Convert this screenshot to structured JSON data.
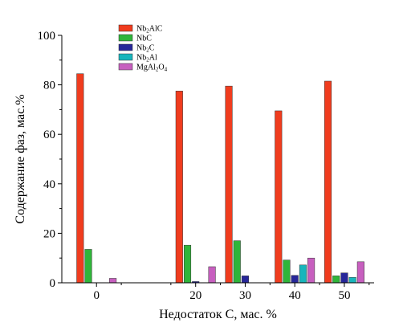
{
  "chart_data": {
    "type": "bar",
    "xlabel": "Недостаток С, мас. %",
    "ylabel": "Содержание фаз, мас.%",
    "ylim": [
      0,
      100
    ],
    "yticks": [
      "0",
      "20",
      "40",
      "60",
      "80",
      "100"
    ],
    "xlim": [
      -7,
      56
    ],
    "categories": [
      "0",
      "20",
      "30",
      "40",
      "50"
    ],
    "x": [
      0,
      20,
      30,
      40,
      50
    ],
    "series": [
      {
        "name": "Nb2AlC",
        "label_main": "Nb",
        "label_sub": "2",
        "label_tail": "AlC",
        "color": "#f03c1e",
        "values": [
          84.5,
          77.5,
          79.5,
          69.5,
          81.5
        ]
      },
      {
        "name": "NbC",
        "label_main": "NbC",
        "label_sub": "",
        "label_tail": "",
        "color": "#2fb53a",
        "values": [
          13.5,
          15.2,
          17.0,
          9.2,
          2.8
        ]
      },
      {
        "name": "Nb2C",
        "label_main": "Nb",
        "label_sub": "2",
        "label_tail": "C",
        "color": "#27279a",
        "values": [
          0,
          0.5,
          2.8,
          3.0,
          4.0
        ]
      },
      {
        "name": "Nb2Al",
        "label_main": "Nb",
        "label_sub": "2",
        "label_tail": "Al",
        "color": "#18b5bc",
        "values": [
          0,
          0,
          0,
          7.2,
          2.2
        ]
      },
      {
        "name": "MgAl2O4",
        "label_main": "MgAl",
        "label_sub": "2",
        "label_tail": "O",
        "label_sub2": "4",
        "color": "#c75fbf",
        "values": [
          1.8,
          6.5,
          0,
          10.0,
          8.5
        ]
      }
    ],
    "legend_position": "top-left",
    "grid": false
  }
}
